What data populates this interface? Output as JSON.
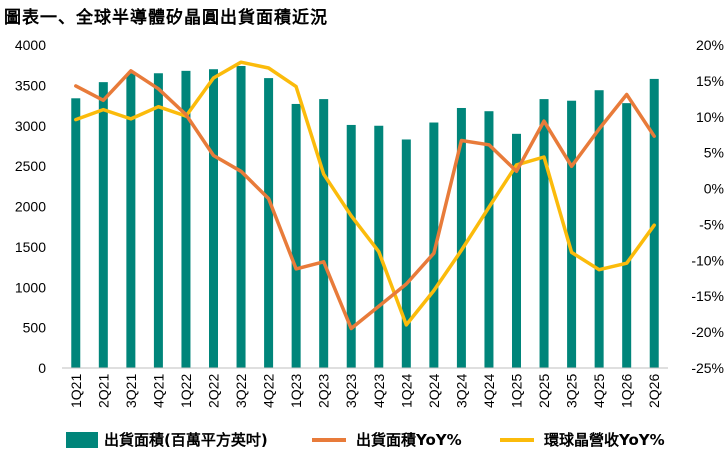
{
  "chart_data": {
    "type": "bar",
    "title": "圖表一、全球半導體矽晶圓出貨面積近況",
    "categories": [
      "1Q21",
      "2Q21",
      "3Q21",
      "4Q21",
      "1Q22",
      "2Q22",
      "3Q22",
      "4Q22",
      "1Q23",
      "2Q23",
      "3Q23",
      "4Q23",
      "1Q24",
      "2Q24",
      "3Q24",
      "4Q24",
      "1Q25",
      "2Q25",
      "3Q25",
      "4Q25",
      "1Q26",
      "2Q26"
    ],
    "y_left": {
      "ylim": [
        0,
        4000
      ],
      "ticks": [
        0,
        500,
        1000,
        1500,
        2000,
        2500,
        3000,
        3500,
        4000
      ],
      "tick_labels": [
        "0",
        "500",
        "1000",
        "1500",
        "2000",
        "2500",
        "3000",
        "3500",
        "4000"
      ]
    },
    "y_right": {
      "ylim": [
        -25,
        20
      ],
      "ticks": [
        -25,
        -20,
        -15,
        -10,
        -5,
        0,
        5,
        10,
        15,
        20
      ],
      "tick_labels": [
        "-25%",
        "-20%",
        "-15%",
        "-10%",
        "-5%",
        "0%",
        "5%",
        "10%",
        "15%",
        "20%"
      ]
    },
    "grid": false,
    "legend_position": "bottom",
    "series": [
      {
        "name": "出貨面積(百萬平方英吋)",
        "type": "bar",
        "axis": "left",
        "color": "#00857a",
        "values": [
          3340,
          3540,
          3650,
          3650,
          3680,
          3700,
          3740,
          3590,
          3270,
          3330,
          3010,
          3000,
          2830,
          3040,
          3220,
          3180,
          2900,
          3330,
          3310,
          3440,
          3280,
          3580
        ]
      },
      {
        "name": "出貨面積YoY%",
        "type": "line",
        "axis": "right",
        "color": "#e87b3a",
        "values": [
          14.3,
          12.3,
          16.4,
          13.9,
          10.3,
          4.6,
          2.4,
          -1.4,
          -11.2,
          -10.2,
          -19.5,
          -16.4,
          -13.3,
          -9.0,
          6.7,
          6.1,
          2.4,
          9.4,
          3.1,
          8.3,
          13.1,
          7.3
        ]
      },
      {
        "name": "環球晶營收YoY%",
        "type": "line",
        "axis": "right",
        "color": "#fbbb0b",
        "values": [
          9.6,
          11.0,
          9.7,
          11.4,
          10.1,
          15.4,
          17.6,
          16.8,
          14.2,
          2.0,
          -3.8,
          -8.8,
          -19.0,
          -14.2,
          -8.6,
          -2.6,
          3.3,
          4.4,
          -8.9,
          -11.3,
          -10.4,
          -5.1
        ]
      }
    ]
  }
}
